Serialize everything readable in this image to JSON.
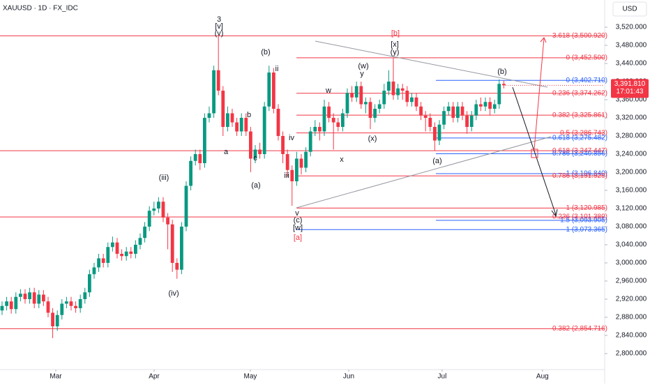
{
  "header": "XAUUSD · 1D · FX_IDC",
  "currency": "USD",
  "chart_data": {
    "type": "candlestick",
    "up_color": "#089981",
    "down_color": "#f23645",
    "open": [
      2895,
      2905,
      2915,
      2898,
      2925,
      2932,
      2920,
      2935,
      2910,
      2930,
      2915,
      2890,
      2860,
      2885,
      2910,
      2915,
      2905,
      2900,
      2920,
      2935,
      2975,
      2990,
      3010,
      3000,
      3035,
      3045,
      3020,
      3015,
      3025,
      3020,
      3040,
      3055,
      3080,
      3115,
      3120,
      3135,
      3100,
      3085,
      3000,
      2985,
      3080,
      3170,
      3225,
      3240,
      3220,
      3320,
      3330,
      3425,
      3380,
      3300,
      3330,
      3310,
      3290,
      3320,
      3290,
      3230,
      3250,
      3240,
      3345,
      3420,
      3340,
      3280,
      3240,
      3205,
      3180,
      3230,
      3210,
      3245,
      3290,
      3300,
      3290,
      3345,
      3320,
      3310,
      3300,
      3330,
      3375,
      3365,
      3390,
      3350,
      3355,
      3320,
      3340,
      3350,
      3380,
      3400,
      3370,
      3385,
      3380,
      3355,
      3365,
      3345,
      3325,
      3320,
      3300,
      3270,
      3305,
      3335,
      3345,
      3320,
      3345,
      3325,
      3300,
      3325,
      3350,
      3345,
      3355,
      3340,
      3350,
      3395
    ],
    "high": [
      2915,
      2925,
      2925,
      2935,
      2942,
      2942,
      2945,
      2945,
      2940,
      2940,
      2925,
      2900,
      2895,
      2920,
      2925,
      2925,
      2915,
      2930,
      2945,
      2985,
      3000,
      3020,
      3020,
      3045,
      3058,
      3055,
      3030,
      3035,
      3035,
      3050,
      3065,
      3090,
      3125,
      3135,
      3145,
      3145,
      3110,
      3095,
      3010,
      3090,
      3180,
      3235,
      3250,
      3250,
      3330,
      3345,
      3435,
      3500,
      3390,
      3345,
      3340,
      3320,
      3330,
      3330,
      3300,
      3260,
      3265,
      3355,
      3435,
      3430,
      3350,
      3290,
      3250,
      3215,
      3245,
      3240,
      3255,
      3300,
      3315,
      3310,
      3360,
      3355,
      3330,
      3320,
      3340,
      3385,
      3390,
      3400,
      3400,
      3365,
      3365,
      3350,
      3360,
      3395,
      3425,
      3452,
      3395,
      3395,
      3390,
      3375,
      3375,
      3355,
      3335,
      3330,
      3310,
      3315,
      3345,
      3355,
      3355,
      3355,
      3355,
      3335,
      3335,
      3360,
      3365,
      3365,
      3365,
      3360,
      3405,
      3402
    ],
    "low": [
      2885,
      2895,
      2888,
      2888,
      2915,
      2910,
      2910,
      2900,
      2900,
      2905,
      2880,
      2834,
      2850,
      2875,
      2900,
      2895,
      2890,
      2890,
      2910,
      2925,
      2965,
      2980,
      2990,
      2990,
      3025,
      3010,
      3005,
      3005,
      3010,
      3010,
      3030,
      3045,
      3070,
      3105,
      3110,
      3090,
      3030,
      2980,
      2965,
      2975,
      3070,
      3160,
      3215,
      3205,
      3210,
      3310,
      3320,
      3370,
      3280,
      3290,
      3300,
      3280,
      3280,
      3280,
      3200,
      3220,
      3230,
      3230,
      3335,
      3330,
      3270,
      3220,
      3190,
      3126,
      3170,
      3195,
      3200,
      3235,
      3280,
      3270,
      3280,
      3310,
      3250,
      3290,
      3290,
      3320,
      3355,
      3355,
      3340,
      3330,
      3295,
      3310,
      3330,
      3340,
      3370,
      3360,
      3360,
      3360,
      3345,
      3345,
      3335,
      3315,
      3290,
      3290,
      3248,
      3260,
      3295,
      3325,
      3310,
      3310,
      3315,
      3285,
      3290,
      3315,
      3335,
      3335,
      3325,
      3330,
      3340,
      3385
    ],
    "close": [
      2905,
      2915,
      2898,
      2925,
      2932,
      2920,
      2935,
      2910,
      2930,
      2915,
      2890,
      2860,
      2885,
      2910,
      2915,
      2905,
      2900,
      2920,
      2935,
      2975,
      2990,
      3010,
      3000,
      3035,
      3045,
      3020,
      3015,
      3025,
      3020,
      3040,
      3055,
      3080,
      3115,
      3120,
      3135,
      3100,
      3085,
      3000,
      2985,
      3080,
      3170,
      3225,
      3240,
      3220,
      3320,
      3330,
      3425,
      3380,
      3300,
      3330,
      3310,
      3290,
      3320,
      3290,
      3230,
      3250,
      3240,
      3345,
      3420,
      3340,
      3280,
      3240,
      3205,
      3180,
      3230,
      3210,
      3245,
      3290,
      3300,
      3290,
      3345,
      3320,
      3310,
      3300,
      3330,
      3375,
      3365,
      3390,
      3350,
      3355,
      3320,
      3340,
      3350,
      3380,
      3400,
      3370,
      3385,
      3380,
      3355,
      3365,
      3345,
      3325,
      3320,
      3300,
      3270,
      3305,
      3335,
      3345,
      3320,
      3345,
      3325,
      3300,
      3325,
      3350,
      3345,
      3355,
      3340,
      3350,
      3395,
      3391.81
    ],
    "xlim": [
      -0.45,
      130.76
    ],
    "xticks": [
      {
        "value": 11.67,
        "label": "Mar"
      },
      {
        "value": 33.03,
        "label": "Apr"
      },
      {
        "value": 53.94,
        "label": "May"
      },
      {
        "value": 75.3,
        "label": "Jun"
      },
      {
        "value": 95.6,
        "label": "Jul"
      },
      {
        "value": 117.4,
        "label": "Aug"
      }
    ],
    "ylim": [
      2764.6,
      3580
    ],
    "yticks": [
      {
        "value": 2800,
        "label": "2,800.000"
      },
      {
        "value": 2840,
        "label": "2,840.000"
      },
      {
        "value": 2880,
        "label": "2,880.000"
      },
      {
        "value": 2920,
        "label": "2,920.000"
      },
      {
        "value": 2960,
        "label": "2,960.000"
      },
      {
        "value": 3000,
        "label": "3,000.000"
      },
      {
        "value": 3040,
        "label": "3,040.000"
      },
      {
        "value": 3080,
        "label": "3,080.000"
      },
      {
        "value": 3120,
        "label": "3,120.000"
      },
      {
        "value": 3160,
        "label": "3,160.000"
      },
      {
        "value": 3200,
        "label": "3,200.000"
      },
      {
        "value": 3240,
        "label": "3,240.000"
      },
      {
        "value": 3280,
        "label": "3,280.000"
      },
      {
        "value": 3320,
        "label": "3,320.000"
      },
      {
        "value": 3360,
        "label": "3,360.000"
      },
      {
        "value": 3400,
        "label": "3,400.000"
      },
      {
        "value": 3440,
        "label": "3,440.000"
      },
      {
        "value": 3480,
        "label": "3,480.000"
      },
      {
        "value": 3520,
        "label": "3,520.000"
      }
    ],
    "last_price": {
      "value": 3391.81,
      "label": "3,391.810"
    },
    "countdown": "17:01:43",
    "levels": [
      {
        "label": "3.618 (3,500.920)",
        "value": 3500.92,
        "color": "#f23645"
      },
      {
        "label": "0 (3,452.500)",
        "value": 3452.5,
        "color": "#f23645"
      },
      {
        "label": "0 (3,402.710)",
        "value": 3402.71,
        "color": "#2962ff"
      },
      {
        "label": "0.236 (3,374.262)",
        "value": 3374.262,
        "color": "#f23645"
      },
      {
        "label": "0.382 (3,325.861)",
        "value": 3325.861,
        "color": "#f23645"
      },
      {
        "label": "0.5 (3,286.743)",
        "value": 3286.743,
        "color": "#f23645"
      },
      {
        "label": "0.618 (3,275.482)",
        "value": 3275.482,
        "color": "#2962ff"
      },
      {
        "label": "0.618 (3,247.447)",
        "value": 3247.447,
        "color": "#f23645"
      },
      {
        "label": "0.786 (3,240.856)",
        "value": 3240.856,
        "color": "#2962ff"
      },
      {
        "label": "1 (3,196.840)",
        "value": 3196.84,
        "color": "#2962ff"
      },
      {
        "label": "0.786 (3,191.929)",
        "value": 3191.929,
        "color": "#f23645"
      },
      {
        "label": "1 (3,120.985)",
        "value": 3120.985,
        "color": "#f23645"
      },
      {
        "label": "0.236 (3,101.389)",
        "value": 3101.389,
        "color": "#f23645"
      },
      {
        "label": "1.5 (3,093.905)",
        "value": 3093.905,
        "color": "#2962ff"
      },
      {
        "label": "1 (3,073.365)",
        "value": 3073.365,
        "color": "#2962ff"
      },
      {
        "label": "0.382 (2,854.716)",
        "value": 2854.716,
        "color": "#f23645"
      }
    ],
    "annotations": [
      {
        "text": "3",
        "color": "#131722"
      },
      {
        "text": "[v]",
        "color": "#131722"
      },
      {
        "text": "(v)",
        "color": "#131722"
      },
      {
        "text": "(b)",
        "color": "#131722"
      },
      {
        "text": "ii",
        "color": "#131722"
      },
      {
        "text": "b",
        "color": "#131722"
      },
      {
        "text": "a",
        "color": "#131722"
      },
      {
        "text": "c",
        "color": "#131722"
      },
      {
        "text": "(a)",
        "color": "#131722"
      },
      {
        "text": "iv",
        "color": "#131722"
      },
      {
        "text": "iii",
        "color": "#131722"
      },
      {
        "text": "v",
        "color": "#131722"
      },
      {
        "text": "(c)",
        "color": "#131722"
      },
      {
        "text": "[w]",
        "color": "#131722"
      },
      {
        "text": "[a]",
        "color": "#f23645"
      },
      {
        "text": "(iii)",
        "color": "#131722"
      },
      {
        "text": "(iv)",
        "color": "#131722"
      },
      {
        "text": "[b]",
        "color": "#f23645"
      },
      {
        "text": "[x]",
        "color": "#131722"
      },
      {
        "text": "(y)",
        "color": "#131722"
      },
      {
        "text": "(w)",
        "color": "#131722"
      },
      {
        "text": "y",
        "color": "#131722"
      },
      {
        "text": "w",
        "color": "#131722"
      },
      {
        "text": "x",
        "color": "#131722"
      },
      {
        "text": "(x)",
        "color": "#131722"
      },
      {
        "text": "(a)",
        "color": "#131722"
      },
      {
        "text": "(b)",
        "color": "#131722"
      }
    ]
  }
}
